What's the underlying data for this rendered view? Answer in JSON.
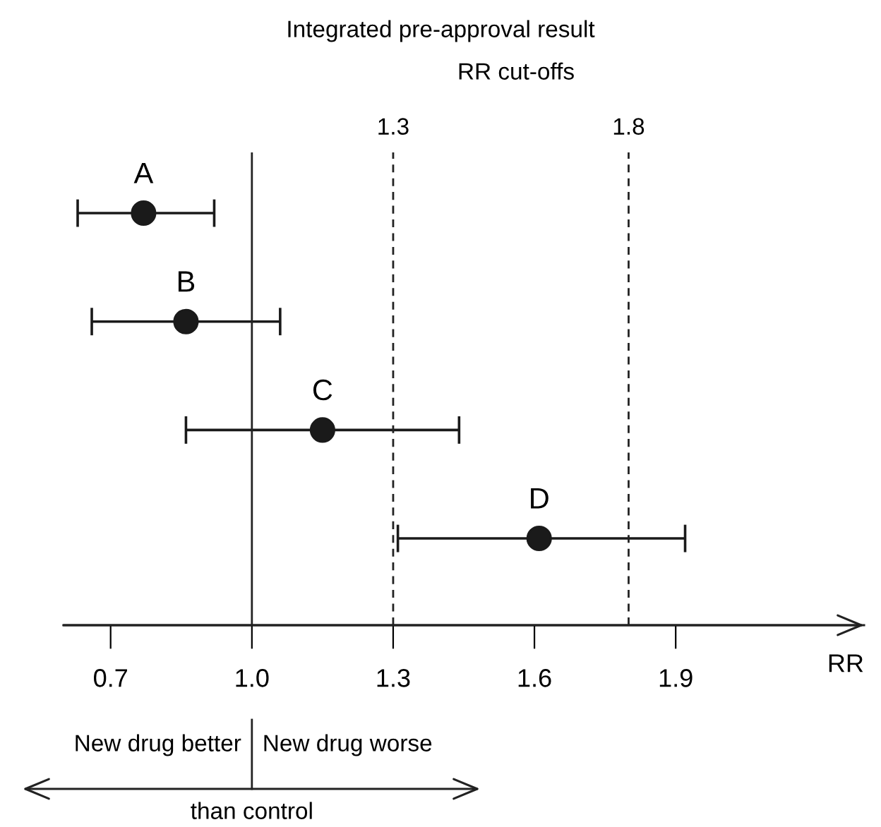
{
  "chart_data": {
    "type": "scatter",
    "title": "Integrated pre-approval result",
    "subtitle": "RR cut-offs",
    "xlabel": "RR",
    "orientation": "horizontal",
    "categories": [
      null,
      null,
      null,
      null
    ],
    "values": [
      0.77,
      0.86,
      1.15,
      1.61
    ],
    "errors": [
      [
        0.63,
        0.92
      ],
      [
        0.66,
        1.06
      ],
      [
        0.86,
        1.44
      ],
      [
        1.31,
        1.92
      ]
    ],
    "color": "#1a1a1a",
    "marker": "circle",
    "xlim": [
      0.6,
      2.3
    ],
    "xticks": [
      0.7,
      {
        "value": 1,
        "label": "1.0"
      },
      1.3,
      1.6,
      1.9
    ],
    "tick_labels": "x",
    "grid": false,
    "legend": false,
    "ref_lines": [
      {
        "axis": "x",
        "value": 1.0,
        "line_style": "solid"
      },
      {
        "axis": "x",
        "value": 1.3,
        "label": "1.3",
        "line_style": "dashed"
      },
      {
        "axis": "x",
        "value": 1.8,
        "label": "1.8",
        "line_style": "dashed"
      }
    ],
    "annotations": [
      "A",
      "B",
      "C",
      "D",
      "New drug better",
      "New drug worse",
      "than control"
    ]
  }
}
